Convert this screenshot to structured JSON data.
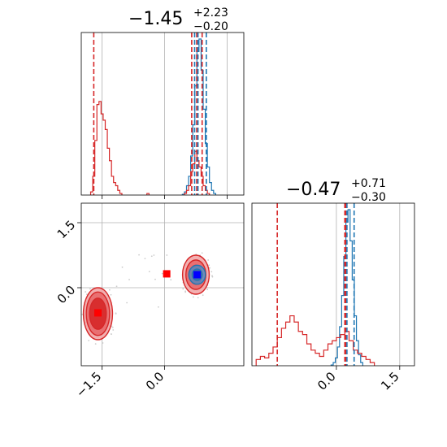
{
  "chart_data": {
    "type": "corner",
    "parameters": 2,
    "colors": {
      "red": "#d62728",
      "blue": "#1f77b4",
      "marker_red": "#ff0000",
      "marker_blue": "#0000ff",
      "grid": "#b0b0b0"
    },
    "panel_top": {
      "title": {
        "base": "−1.45",
        "sup": "+2.23",
        "sub": "−0.20"
      },
      "xlim": [
        -2.0,
        1.9
      ],
      "xticks": [
        -1.5,
        0.0,
        1.5
      ],
      "hist_blue": [
        [
          0.45,
          0.005
        ],
        [
          0.5,
          0.02
        ],
        [
          0.55,
          0.06
        ],
        [
          0.6,
          0.12
        ],
        [
          0.65,
          0.25
        ],
        [
          0.7,
          0.45
        ],
        [
          0.75,
          0.7
        ],
        [
          0.8,
          0.92
        ],
        [
          0.85,
          1.0
        ],
        [
          0.9,
          0.8
        ],
        [
          0.95,
          0.55
        ],
        [
          1.0,
          0.33
        ],
        [
          1.05,
          0.18
        ],
        [
          1.1,
          0.08
        ],
        [
          1.15,
          0.03
        ],
        [
          1.2,
          0.01
        ]
      ],
      "hist_red": [
        [
          -1.75,
          0.02
        ],
        [
          -1.7,
          0.12
        ],
        [
          -1.65,
          0.35
        ],
        [
          -1.6,
          0.58
        ],
        [
          -1.55,
          0.6
        ],
        [
          -1.5,
          0.52
        ],
        [
          -1.45,
          0.48
        ],
        [
          -1.4,
          0.42
        ],
        [
          -1.35,
          0.3
        ],
        [
          -1.3,
          0.22
        ],
        [
          -1.25,
          0.12
        ],
        [
          -1.2,
          0.08
        ],
        [
          -1.15,
          0.06
        ],
        [
          -1.1,
          0.03
        ],
        [
          -1.05,
          0.01
        ],
        [
          -0.4,
          0.01
        ],
        [
          0.5,
          0.01
        ],
        [
          0.55,
          0.03
        ],
        [
          0.6,
          0.06
        ],
        [
          0.65,
          0.15
        ],
        [
          0.7,
          0.2
        ],
        [
          0.75,
          0.28
        ],
        [
          0.8,
          0.22
        ],
        [
          0.85,
          0.18
        ],
        [
          0.9,
          0.12
        ],
        [
          0.95,
          0.06
        ],
        [
          1.0,
          0.03
        ],
        [
          1.05,
          0.01
        ]
      ],
      "lines_red": [
        -1.7,
        0.65,
        0.77,
        0.9
      ],
      "lines_blue": [
        0.72,
        0.8,
        1.0
      ]
    },
    "panel_right": {
      "title": {
        "base": "−0.47",
        "sup": "+0.71",
        "sub": "−0.30"
      },
      "xlim": [
        -2.0,
        1.85
      ],
      "xticks": [
        0.0,
        1.5
      ],
      "hist_blue": [
        [
          -0.1,
          0.005
        ],
        [
          -0.05,
          0.02
        ],
        [
          0.0,
          0.05
        ],
        [
          0.05,
          0.12
        ],
        [
          0.1,
          0.25
        ],
        [
          0.15,
          0.45
        ],
        [
          0.2,
          0.7
        ],
        [
          0.25,
          0.92
        ],
        [
          0.3,
          1.0
        ],
        [
          0.35,
          0.8
        ],
        [
          0.4,
          0.55
        ],
        [
          0.45,
          0.32
        ],
        [
          0.5,
          0.16
        ],
        [
          0.55,
          0.07
        ],
        [
          0.6,
          0.02
        ]
      ],
      "hist_red": [
        [
          -1.85,
          0.04
        ],
        [
          -1.75,
          0.06
        ],
        [
          -1.65,
          0.05
        ],
        [
          -1.55,
          0.08
        ],
        [
          -1.45,
          0.12
        ],
        [
          -1.35,
          0.18
        ],
        [
          -1.25,
          0.24
        ],
        [
          -1.15,
          0.28
        ],
        [
          -1.05,
          0.32
        ],
        [
          -0.95,
          0.28
        ],
        [
          -0.85,
          0.22
        ],
        [
          -0.75,
          0.2
        ],
        [
          -0.65,
          0.14
        ],
        [
          -0.55,
          0.1
        ],
        [
          -0.45,
          0.08
        ],
        [
          -0.35,
          0.06
        ],
        [
          -0.25,
          0.1
        ],
        [
          -0.15,
          0.14
        ],
        [
          -0.05,
          0.16
        ],
        [
          0.05,
          0.18
        ],
        [
          0.15,
          0.2
        ],
        [
          0.25,
          0.22
        ],
        [
          0.35,
          0.16
        ],
        [
          0.45,
          0.1
        ],
        [
          0.55,
          0.08
        ],
        [
          0.65,
          0.06
        ],
        [
          0.75,
          0.04
        ],
        [
          0.85,
          0.02
        ]
      ],
      "lines_red": [
        -1.4,
        0.2,
        0.22
      ],
      "lines_blue": [
        0.25,
        0.42
      ]
    },
    "panel_joint": {
      "xlim": [
        -2.0,
        1.9
      ],
      "ylim": [
        -1.8,
        1.95
      ],
      "xticks": [
        -1.5,
        0.0
      ],
      "yticks": [
        1.5,
        0.0
      ],
      "xtick_labels": [
        "−1.5",
        "0.0"
      ],
      "ytick_labels": [
        "1.5",
        "0.0"
      ],
      "contours_red": [
        {
          "cx": -1.6,
          "cy": -0.6,
          "rx": 0.35,
          "ry": 0.6,
          "level": 1
        },
        {
          "cx": -1.6,
          "cy": -0.6,
          "rx": 0.28,
          "ry": 0.5,
          "level": 2
        },
        {
          "cx": -1.6,
          "cy": -0.6,
          "rx": 0.2,
          "ry": 0.36,
          "level": 3
        },
        {
          "cx": 0.75,
          "cy": 0.3,
          "rx": 0.32,
          "ry": 0.45,
          "level": 1
        },
        {
          "cx": 0.75,
          "cy": 0.3,
          "rx": 0.24,
          "ry": 0.34,
          "level": 2
        },
        {
          "cx": 0.75,
          "cy": 0.3,
          "rx": 0.15,
          "ry": 0.22,
          "level": 3
        }
      ],
      "contours_blue": [
        {
          "cx": 0.78,
          "cy": 0.3,
          "rx": 0.2,
          "ry": 0.22
        },
        {
          "cx": 0.78,
          "cy": 0.3,
          "rx": 0.12,
          "ry": 0.13
        }
      ],
      "markers_red": [
        [
          -1.6,
          -0.58
        ],
        [
          0.05,
          0.32
        ],
        [
          0.78,
          0.3
        ]
      ],
      "markers_blue": [
        [
          0.78,
          0.3
        ]
      ]
    }
  }
}
